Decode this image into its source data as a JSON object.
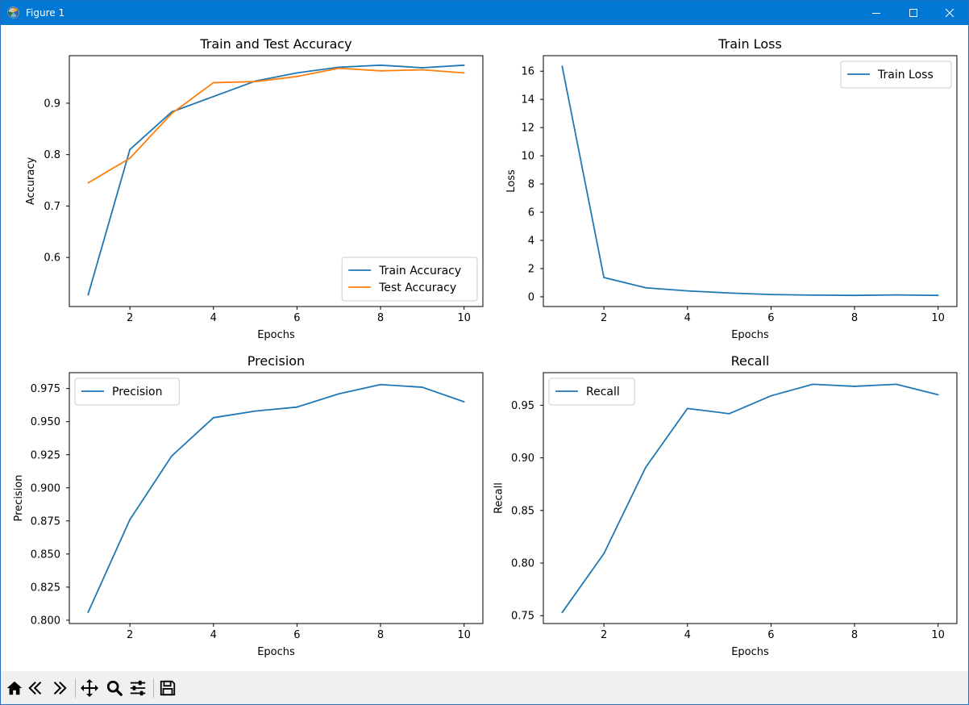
{
  "window": {
    "title": "Figure 1"
  },
  "toolbar": {
    "buttons": [
      {
        "icon": "home-icon"
      },
      {
        "icon": "back-arrow-icon"
      },
      {
        "icon": "forward-arrow-icon"
      },
      {
        "icon": "pan-move-icon"
      },
      {
        "icon": "zoom-magnifier-icon"
      },
      {
        "icon": "configure-subplots-icon"
      },
      {
        "icon": "save-floppy-icon"
      }
    ]
  },
  "colors": {
    "series_blue": "#1f77b4",
    "series_orange": "#ff7f0e",
    "titlebar": "#0078d4",
    "toolbar_bg": "#f0f0f0"
  },
  "chart_data": [
    {
      "type": "line",
      "title": "Train and Test Accuracy",
      "xlabel": "Epochs",
      "ylabel": "Accuracy",
      "xlim": [
        0.55,
        10.45
      ],
      "ylim": [
        0.5045,
        0.9925
      ],
      "xticks": [
        2,
        4,
        6,
        8,
        10
      ],
      "yticks": [
        0.6,
        0.7,
        0.8,
        0.9
      ],
      "ytick_labels": [
        "0.6",
        "0.7",
        "0.8",
        "0.9"
      ],
      "legend": "lower right",
      "grid": false,
      "x": [
        1,
        2,
        3,
        4,
        5,
        6,
        7,
        8,
        9,
        10
      ],
      "series": [
        {
          "name": "Train Accuracy",
          "color": "#1f77b4",
          "values": [
            0.527,
            0.81,
            0.883,
            0.913,
            0.943,
            0.959,
            0.97,
            0.974,
            0.969,
            0.974
          ]
        },
        {
          "name": "Test Accuracy",
          "color": "#ff7f0e",
          "values": [
            0.745,
            0.793,
            0.88,
            0.94,
            0.942,
            0.952,
            0.968,
            0.963,
            0.965,
            0.959
          ]
        }
      ]
    },
    {
      "type": "line",
      "title": "Train Loss",
      "xlabel": "Epochs",
      "ylabel": "Loss",
      "xlim": [
        0.55,
        10.45
      ],
      "ylim": [
        -0.69,
        17.1
      ],
      "xticks": [
        2,
        4,
        6,
        8,
        10
      ],
      "yticks": [
        0,
        2,
        4,
        6,
        8,
        10,
        12,
        14,
        16
      ],
      "ytick_labels": [
        "0",
        "2",
        "4",
        "6",
        "8",
        "10",
        "12",
        "14",
        "16"
      ],
      "legend": "upper right",
      "grid": false,
      "x": [
        1,
        2,
        3,
        4,
        5,
        6,
        7,
        8,
        9,
        10
      ],
      "series": [
        {
          "name": "Train Loss",
          "color": "#1f77b4",
          "values": [
            16.35,
            1.37,
            0.64,
            0.42,
            0.27,
            0.16,
            0.12,
            0.1,
            0.13,
            0.1
          ]
        }
      ]
    },
    {
      "type": "line",
      "title": "Precision",
      "xlabel": "Epochs",
      "ylabel": "Precision",
      "xlim": [
        0.55,
        10.45
      ],
      "ylim": [
        0.7975,
        0.987
      ],
      "xticks": [
        2,
        4,
        6,
        8,
        10
      ],
      "yticks": [
        0.8,
        0.825,
        0.85,
        0.875,
        0.9,
        0.925,
        0.95,
        0.975
      ],
      "ytick_labels": [
        "0.800",
        "0.825",
        "0.850",
        "0.875",
        "0.900",
        "0.925",
        "0.950",
        "0.975"
      ],
      "legend": "upper left",
      "grid": false,
      "x": [
        1,
        2,
        3,
        4,
        5,
        6,
        7,
        8,
        9,
        10
      ],
      "series": [
        {
          "name": "Precision",
          "color": "#1f77b4",
          "values": [
            0.806,
            0.876,
            0.924,
            0.953,
            0.958,
            0.961,
            0.971,
            0.978,
            0.976,
            0.965
          ]
        }
      ]
    },
    {
      "type": "line",
      "title": "Recall",
      "xlabel": "Epochs",
      "ylabel": "Recall",
      "xlim": [
        0.55,
        10.45
      ],
      "ylim": [
        0.7425,
        0.981
      ],
      "xticks": [
        2,
        4,
        6,
        8,
        10
      ],
      "yticks": [
        0.75,
        0.8,
        0.85,
        0.9,
        0.95
      ],
      "ytick_labels": [
        "0.75",
        "0.80",
        "0.85",
        "0.90",
        "0.95"
      ],
      "legend": "upper left",
      "grid": false,
      "x": [
        1,
        2,
        3,
        4,
        5,
        6,
        7,
        8,
        9,
        10
      ],
      "series": [
        {
          "name": "Recall",
          "color": "#1f77b4",
          "values": [
            0.753,
            0.809,
            0.891,
            0.947,
            0.942,
            0.959,
            0.97,
            0.968,
            0.97,
            0.96
          ]
        }
      ]
    }
  ]
}
